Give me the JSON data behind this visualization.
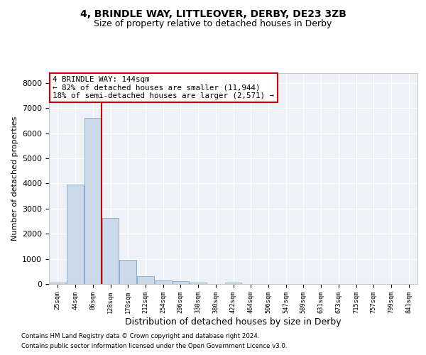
{
  "title1": "4, BRINDLE WAY, LITTLEOVER, DERBY, DE23 3ZB",
  "title2": "Size of property relative to detached houses in Derby",
  "xlabel": "Distribution of detached houses by size in Derby",
  "ylabel": "Number of detached properties",
  "bar_color": "#ccd9e8",
  "bar_edgecolor": "#7ea6c8",
  "vline_color": "#cc0000",
  "annotation_text": "4 BRINDLE WAY: 144sqm\n← 82% of detached houses are smaller (11,944)\n18% of semi-detached houses are larger (2,571) →",
  "annotation_box_edgecolor": "#cc0000",
  "bin_labels": [
    "25sqm",
    "44sqm",
    "86sqm",
    "128sqm",
    "170sqm",
    "212sqm",
    "254sqm",
    "296sqm",
    "338sqm",
    "380sqm",
    "422sqm",
    "464sqm",
    "506sqm",
    "547sqm",
    "589sqm",
    "631sqm",
    "673sqm",
    "715sqm",
    "757sqm",
    "799sqm",
    "841sqm"
  ],
  "bar_heights": [
    70,
    3950,
    6600,
    2620,
    960,
    310,
    130,
    105,
    60,
    0,
    60,
    0,
    0,
    0,
    0,
    0,
    0,
    0,
    0,
    0,
    0
  ],
  "vline_idx": 2.5,
  "ylim": [
    0,
    8400
  ],
  "yticks": [
    0,
    1000,
    2000,
    3000,
    4000,
    5000,
    6000,
    7000,
    8000
  ],
  "footer1": "Contains HM Land Registry data © Crown copyright and database right 2024.",
  "footer2": "Contains public sector information licensed under the Open Government Licence v3.0.",
  "background_color": "#eef2f7",
  "grid_color": "#ffffff",
  "fig_background": "#ffffff"
}
